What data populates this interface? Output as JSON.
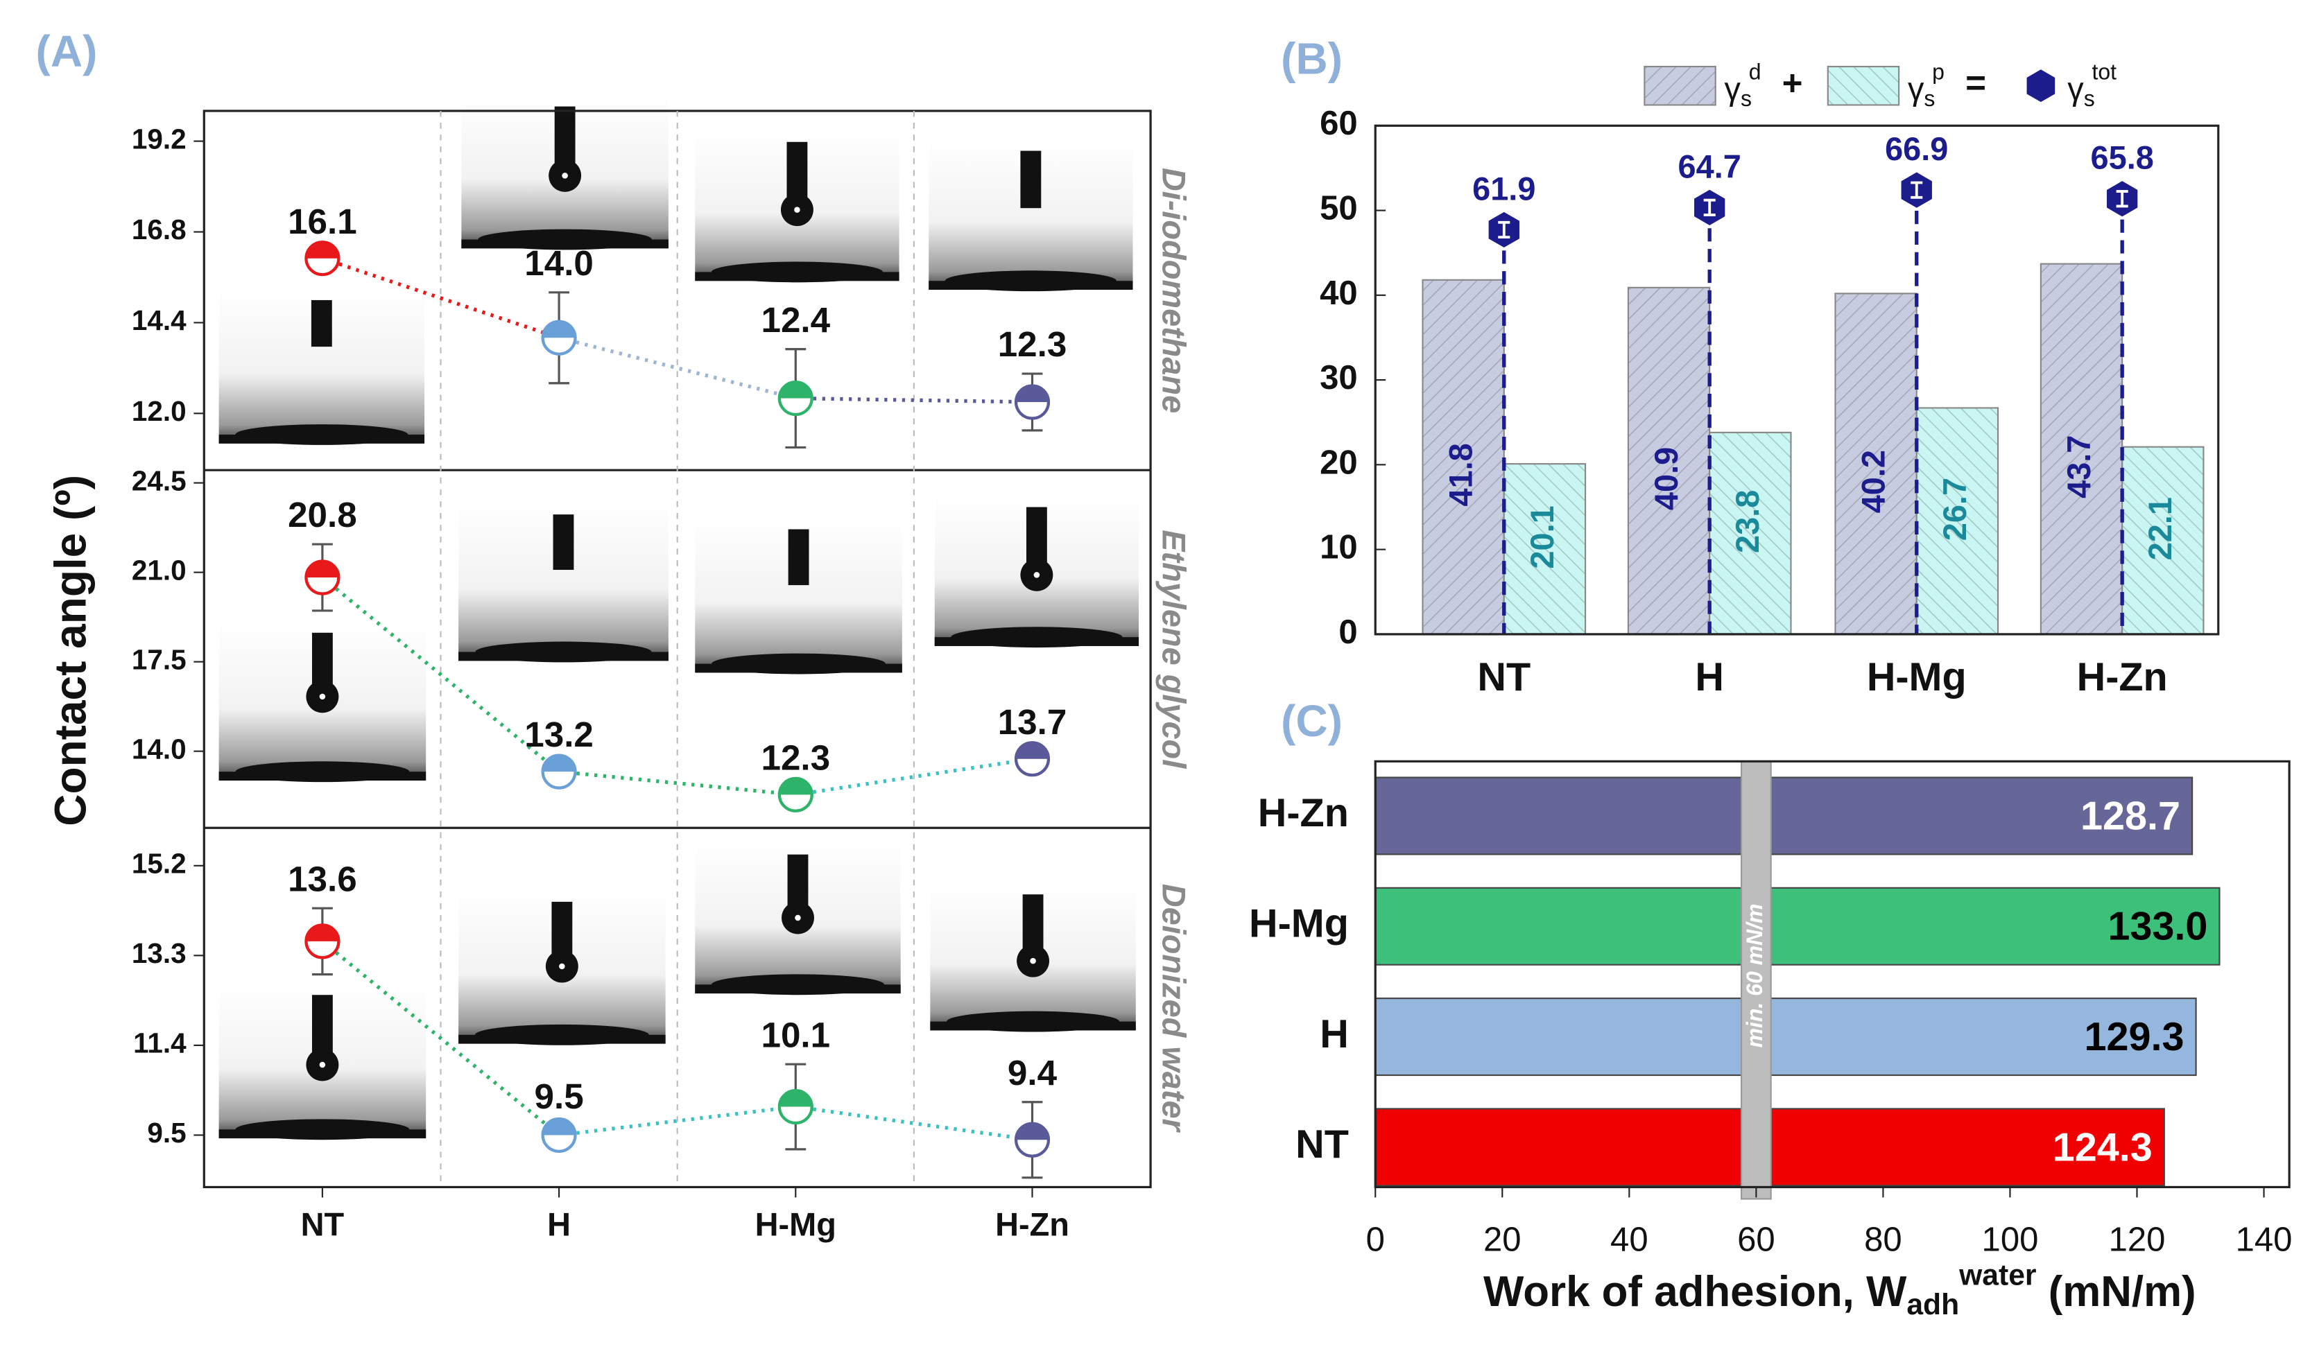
{
  "panel_labels": [
    "(A)",
    "(B)",
    "(C)"
  ],
  "chart_data": [
    {
      "type": "line",
      "ylabel": "Contact angle (º)",
      "categories": [
        "NT",
        "H",
        "H-Mg",
        "H-Zn"
      ],
      "colors": [
        "#e8191b",
        "#6aa0d8",
        "#2db36a",
        "#5a5a9a"
      ],
      "panels": [
        {
          "name": "Di-iodomethane",
          "ylim": [
            10.5,
            20.0
          ],
          "yticks": [
            {
              "value": 12.0,
              "label": "12.0"
            },
            14.4,
            16.8,
            19.2
          ],
          "values": [
            16.1,
            14.0,
            12.4,
            12.3
          ],
          "errors": [
            0.2,
            1.2,
            1.3,
            0.75
          ],
          "value_labels": [
            "16.1",
            "14.0",
            "12.4",
            "12.3"
          ],
          "line_colors": [
            "#e8191b",
            "#9fb4d0",
            "#5a5a9a"
          ]
        },
        {
          "name": "Ethylene glycol",
          "ylim": [
            11.0,
            25.0
          ],
          "yticks": [
            {
              "value": 14.0,
              "label": "14.0"
            },
            17.5,
            {
              "value": 21.0,
              "label": "21.0"
            },
            24.5
          ],
          "values": [
            20.8,
            13.2,
            12.3,
            13.7
          ],
          "errors": [
            1.3,
            0.3,
            0.3,
            0.3
          ],
          "value_labels": [
            "20.8",
            "13.2",
            "12.3",
            "13.7"
          ],
          "line_colors": [
            "#2db36a",
            "#2db36a",
            "#3cc0c0"
          ]
        },
        {
          "name": "Deionized water",
          "ylim": [
            8.4,
            16.0
          ],
          "yticks": [
            9.5,
            11.4,
            13.3,
            15.2
          ],
          "values": [
            13.6,
            9.5,
            10.1,
            9.4
          ],
          "errors": [
            0.7,
            0.2,
            0.9,
            0.8
          ],
          "value_labels": [
            "13.6",
            "9.5",
            "10.1",
            "9.4"
          ],
          "line_colors": [
            "#2db36a",
            "#3cc0c0",
            "#3cc0c0"
          ]
        }
      ]
    },
    {
      "type": "bar",
      "categories": [
        "NT",
        "H",
        "H-Mg",
        "H-Zn"
      ],
      "ylim": [
        0,
        60
      ],
      "yticks": [
        0,
        10,
        20,
        30,
        40,
        50,
        60
      ],
      "y2lim": [
        11,
        75
      ],
      "legend_operators": [
        "+",
        "="
      ],
      "series": [
        {
          "name": "γ",
          "subscript": "s",
          "superscript": "d",
          "color": "#c8cce0",
          "label_color": "#1c1c8c",
          "values": [
            41.8,
            40.9,
            40.2,
            43.7
          ]
        },
        {
          "name": "γ",
          "subscript": "s",
          "superscript": "p",
          "color": "#c9f5f2",
          "label_color": "#1a8a9a",
          "values": [
            20.1,
            23.8,
            26.7,
            22.1
          ]
        },
        {
          "name": "γ",
          "subscript": "s",
          "superscript": "tot",
          "color": "#1c1c8c",
          "axis": "y2",
          "values": [
            61.9,
            64.7,
            66.9,
            65.8
          ]
        }
      ]
    },
    {
      "type": "barh",
      "categories": [
        "NT",
        "H",
        "H-Mg",
        "H-Zn"
      ],
      "values": [
        124.3,
        129.3,
        133.0,
        128.7
      ],
      "value_labels": [
        "124.3",
        "129.3",
        "133.0",
        "128.7"
      ],
      "colors": [
        "#f00000",
        "#95b7de",
        "#3cc07a",
        "#666699"
      ],
      "label_colors": [
        "#ffffff",
        "#000000",
        "#000000",
        "#ffffff"
      ],
      "xlim": [
        0,
        144
      ],
      "xticks": [
        0,
        20,
        40,
        60,
        80,
        100,
        120,
        140
      ],
      "xlabel": {
        "text": "Work of adhesion, W",
        "sub": "adh",
        "sup": "water",
        "suffix": " (mN/m)"
      },
      "annotation": {
        "value": 60,
        "label": "min. 60 mN/m"
      }
    }
  ]
}
